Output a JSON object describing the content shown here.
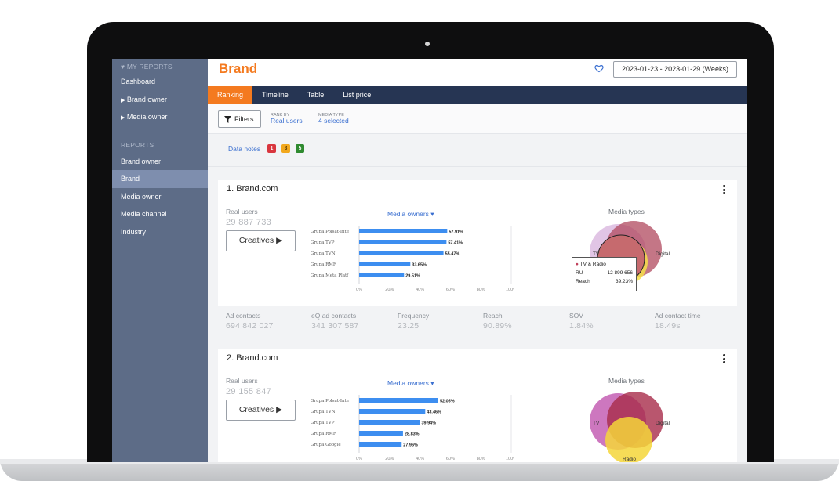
{
  "sidebar": {
    "my_reports_label": "MY REPORTS",
    "my_reports_items": [
      {
        "label": "Dashboard",
        "caret": false
      },
      {
        "label": "Brand owner",
        "caret": true
      },
      {
        "label": "Media owner",
        "caret": true
      }
    ],
    "reports_label": "REPORTS",
    "reports_items": [
      {
        "label": "Brand owner",
        "active": false
      },
      {
        "label": "Brand",
        "active": true
      },
      {
        "label": "Media owner",
        "active": false
      },
      {
        "label": "Media channel",
        "active": false
      },
      {
        "label": "Industry",
        "active": false
      }
    ]
  },
  "header": {
    "title": "Brand",
    "date_range": "2023-01-23 - 2023-01-29 (Weeks)"
  },
  "tabs": [
    "Ranking",
    "Timeline",
    "Table",
    "List price"
  ],
  "filter_bar": {
    "filters_label": "Filters",
    "rank_by_label": "RANK BY",
    "rank_by_value": "Real users",
    "media_type_label": "MEDIA TYPE",
    "media_type_value": "4 selected"
  },
  "notes": {
    "label": "Data notes",
    "badges": [
      {
        "count": "1",
        "color": "#d9363e"
      },
      {
        "count": "3",
        "color": "#f2a81d"
      },
      {
        "count": "5",
        "color": "#2f8a2f"
      }
    ]
  },
  "colors": {
    "accent": "#f47a1f",
    "nav": "#263553",
    "bar": "#3d8ef0",
    "sidebar": "#5d6c87"
  },
  "cards": [
    {
      "title": "1. Brand.com",
      "real_users_label": "Real users",
      "real_users_value": "29 887 733",
      "creatives_label": "Creatives ▶",
      "media_owners_label": "Media owners ▾",
      "media_types_label": "Media types",
      "venn_labels": [
        "TV",
        "Digital"
      ],
      "tooltip": {
        "title": "TV & Radio",
        "ru_label": "RU",
        "ru_value": "12 899 656",
        "reach_label": "Reach",
        "reach_value": "39.23%"
      },
      "stats": [
        {
          "label": "Ad contacts",
          "value": "694 842 027"
        },
        {
          "label": "eQ ad contacts",
          "value": "341 307 587"
        },
        {
          "label": "Frequency",
          "value": "23.25"
        },
        {
          "label": "Reach",
          "value": "90.89%"
        },
        {
          "label": "SOV",
          "value": "1.84%"
        },
        {
          "label": "Ad contact time",
          "value": "18.49s"
        }
      ]
    },
    {
      "title": "2. Brand.com",
      "real_users_label": "Real users",
      "real_users_value": "29 155 847",
      "creatives_label": "Creatives ▶",
      "media_owners_label": "Media owners ▾",
      "media_types_label": "Media types",
      "venn_labels": [
        "TV",
        "Digital",
        "Radio"
      ]
    }
  ],
  "chart_data": [
    {
      "type": "bar",
      "orientation": "horizontal",
      "categories": [
        "Grupa Polsat-Inte",
        "Grupa TVP",
        "Grupa TVN",
        "Grupa RMF",
        "Grupa Meta Platf"
      ],
      "values": [
        57.91,
        57.41,
        55.47,
        33.65,
        29.51
      ],
      "value_labels": [
        "57.91%",
        "57.41%",
        "55.47%",
        "33.65%",
        "29.51%"
      ],
      "xticks": [
        "0%",
        "20%",
        "40%",
        "60%",
        "80%",
        "100%"
      ],
      "xlim": [
        0,
        100
      ]
    },
    {
      "type": "bar",
      "orientation": "horizontal",
      "categories": [
        "Grupa Polsat-Inte",
        "Grupa TVN",
        "Grupa TVP",
        "Grupa RMF",
        "Grupa Google"
      ],
      "values": [
        52.05,
        43.46,
        39.94,
        28.83,
        27.96
      ],
      "value_labels": [
        "52.05%",
        "43.46%",
        "39.94%",
        "28.83%",
        "27.96%"
      ],
      "xticks": [
        "0%",
        "20%",
        "40%",
        "60%",
        "80%",
        "100%"
      ],
      "xlim": [
        0,
        100
      ]
    }
  ]
}
